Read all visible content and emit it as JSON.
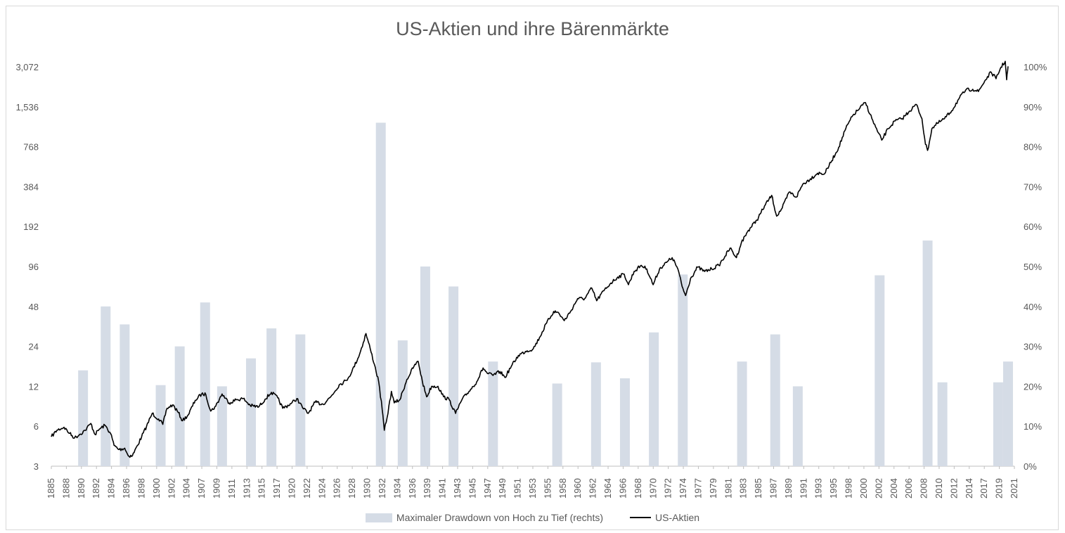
{
  "chart_data": {
    "type": "bar+line",
    "title": "US-Aktien und ihre Bärenmärkte",
    "y_left": {
      "scale": "log2",
      "ticks": [
        "3",
        "6",
        "12",
        "24",
        "48",
        "96",
        "192",
        "384",
        "768",
        "1,536",
        "3,072"
      ],
      "ylim": [
        3,
        3072
      ]
    },
    "y_right": {
      "ticks": [
        "0%",
        "10%",
        "20%",
        "30%",
        "40%",
        "50%",
        "60%",
        "70%",
        "80%",
        "90%",
        "100%"
      ],
      "ylim": [
        0,
        1
      ]
    },
    "x": {
      "xlim": [
        1885,
        2021.5
      ],
      "tick_labels": [
        "1885",
        "1888",
        "1890",
        "1892",
        "1894",
        "1896",
        "1898",
        "1900",
        "1902",
        "1904",
        "1907",
        "1909",
        "1911",
        "1913",
        "1915",
        "1917",
        "1920",
        "1922",
        "1924",
        "1926",
        "1928",
        "1930",
        "1932",
        "1934",
        "1936",
        "1939",
        "1941",
        "1943",
        "1945",
        "1947",
        "1949",
        "1951",
        "1953",
        "1955",
        "1958",
        "1960",
        "1962",
        "1964",
        "1966",
        "1968",
        "1970",
        "1972",
        "1974",
        "1977",
        "1979",
        "1981",
        "1983",
        "1985",
        "1987",
        "1989",
        "1991",
        "1993",
        "1995",
        "1998",
        "2000",
        "2002",
        "2004",
        "2006",
        "2008",
        "2010",
        "2012",
        "2014",
        "2017",
        "2019",
        "2021"
      ]
    },
    "series": [
      {
        "name": "Maximaler Drawdown von Hoch zu Tief (rechts)",
        "type": "bar",
        "color": "#d5dce6",
        "axis": "right",
        "points": [
          {
            "x": 1889.5,
            "y": 0.24
          },
          {
            "x": 1892.7,
            "y": 0.4
          },
          {
            "x": 1895.4,
            "y": 0.355
          },
          {
            "x": 1900.5,
            "y": 0.203
          },
          {
            "x": 1903.2,
            "y": 0.3
          },
          {
            "x": 1906.8,
            "y": 0.41
          },
          {
            "x": 1909.2,
            "y": 0.2
          },
          {
            "x": 1913.3,
            "y": 0.27
          },
          {
            "x": 1916.2,
            "y": 0.345
          },
          {
            "x": 1920.3,
            "y": 0.33
          },
          {
            "x": 1931.7,
            "y": 0.86
          },
          {
            "x": 1934.8,
            "y": 0.315
          },
          {
            "x": 1938.0,
            "y": 0.5
          },
          {
            "x": 1942.0,
            "y": 0.45
          },
          {
            "x": 1947.6,
            "y": 0.262
          },
          {
            "x": 1956.7,
            "y": 0.207
          },
          {
            "x": 1962.2,
            "y": 0.26
          },
          {
            "x": 1966.3,
            "y": 0.22
          },
          {
            "x": 1970.4,
            "y": 0.335
          },
          {
            "x": 1974.5,
            "y": 0.48
          },
          {
            "x": 1982.9,
            "y": 0.262
          },
          {
            "x": 1987.6,
            "y": 0.33
          },
          {
            "x": 1990.8,
            "y": 0.2
          },
          {
            "x": 2002.4,
            "y": 0.478
          },
          {
            "x": 2009.2,
            "y": 0.565
          },
          {
            "x": 2011.3,
            "y": 0.21
          },
          {
            "x": 2019.2,
            "y": 0.21
          },
          {
            "x": 2020.6,
            "y": 0.262
          }
        ]
      },
      {
        "name": "US-Aktien",
        "type": "line",
        "color": "#000000",
        "axis": "left",
        "points": [
          [
            1885.0,
            5.0
          ],
          [
            1885.8,
            5.6
          ],
          [
            1886.8,
            5.9
          ],
          [
            1887.6,
            5.3
          ],
          [
            1888.3,
            4.9
          ],
          [
            1889.0,
            5.2
          ],
          [
            1889.8,
            5.6
          ],
          [
            1890.6,
            6.3
          ],
          [
            1891.2,
            5.2
          ],
          [
            1891.8,
            5.7
          ],
          [
            1892.6,
            6.1
          ],
          [
            1893.4,
            5.3
          ],
          [
            1893.9,
            4.3
          ],
          [
            1894.6,
            4.0
          ],
          [
            1895.4,
            4.1
          ],
          [
            1895.9,
            3.6
          ],
          [
            1896.5,
            3.6
          ],
          [
            1897.2,
            4.3
          ],
          [
            1897.8,
            5.0
          ],
          [
            1898.5,
            6.0
          ],
          [
            1899.3,
            7.5
          ],
          [
            1900.2,
            6.8
          ],
          [
            1900.8,
            6.2
          ],
          [
            1901.4,
            8.2
          ],
          [
            1902.2,
            8.7
          ],
          [
            1903.0,
            7.6
          ],
          [
            1903.6,
            6.6
          ],
          [
            1904.4,
            7.3
          ],
          [
            1905.4,
            9.4
          ],
          [
            1906.3,
            10.5
          ],
          [
            1906.9,
            10.4
          ],
          [
            1907.6,
            7.8
          ],
          [
            1908.3,
            8.5
          ],
          [
            1909.2,
            10.5
          ],
          [
            1910.2,
            9.0
          ],
          [
            1911.2,
            9.5
          ],
          [
            1912.2,
            9.7
          ],
          [
            1913.2,
            8.6
          ],
          [
            1914.4,
            8.4
          ],
          [
            1915.3,
            9.6
          ],
          [
            1916.2,
            10.8
          ],
          [
            1917.1,
            9.8
          ],
          [
            1917.8,
            8.2
          ],
          [
            1919.0,
            8.9
          ],
          [
            1919.8,
            9.7
          ],
          [
            1920.6,
            8.3
          ],
          [
            1921.4,
            7.5
          ],
          [
            1922.4,
            9.1
          ],
          [
            1923.5,
            8.8
          ],
          [
            1924.6,
            10.0
          ],
          [
            1925.8,
            12.3
          ],
          [
            1926.8,
            13.3
          ],
          [
            1927.6,
            15.5
          ],
          [
            1928.7,
            21.0
          ],
          [
            1929.6,
            30.0
          ],
          [
            1930.2,
            23.0
          ],
          [
            1930.8,
            17.5
          ],
          [
            1931.4,
            13.0
          ],
          [
            1931.9,
            8.0
          ],
          [
            1932.2,
            5.6
          ],
          [
            1932.6,
            7.0
          ],
          [
            1933.2,
            11.0
          ],
          [
            1933.6,
            9.0
          ],
          [
            1934.4,
            9.5
          ],
          [
            1935.4,
            13.5
          ],
          [
            1936.4,
            17.0
          ],
          [
            1937.0,
            18.5
          ],
          [
            1937.6,
            13.0
          ],
          [
            1938.2,
            10.0
          ],
          [
            1938.9,
            12.0
          ],
          [
            1939.8,
            12.0
          ],
          [
            1940.6,
            10.0
          ],
          [
            1941.4,
            9.5
          ],
          [
            1942.3,
            7.5
          ],
          [
            1943.2,
            9.5
          ],
          [
            1944.2,
            11.0
          ],
          [
            1945.3,
            13.0
          ],
          [
            1946.2,
            16.5
          ],
          [
            1946.8,
            15.0
          ],
          [
            1947.6,
            14.5
          ],
          [
            1948.6,
            15.5
          ],
          [
            1949.3,
            14.0
          ],
          [
            1950.2,
            17.0
          ],
          [
            1951.2,
            20.5
          ],
          [
            1952.2,
            22.0
          ],
          [
            1953.3,
            23.0
          ],
          [
            1954.2,
            28.0
          ],
          [
            1955.2,
            36.0
          ],
          [
            1956.2,
            44.0
          ],
          [
            1956.9,
            43.0
          ],
          [
            1957.7,
            37.5
          ],
          [
            1958.6,
            44.0
          ],
          [
            1959.6,
            55.0
          ],
          [
            1960.6,
            55.0
          ],
          [
            1961.6,
            66.0
          ],
          [
            1962.3,
            53.0
          ],
          [
            1963.3,
            63.0
          ],
          [
            1964.3,
            72.0
          ],
          [
            1965.3,
            80.0
          ],
          [
            1966.2,
            84.0
          ],
          [
            1966.8,
            70.0
          ],
          [
            1967.6,
            88.0
          ],
          [
            1968.6,
            98.0
          ],
          [
            1969.4,
            92.0
          ],
          [
            1970.3,
            70.0
          ],
          [
            1971.2,
            92.0
          ],
          [
            1972.2,
            103.0
          ],
          [
            1973.0,
            112.0
          ],
          [
            1973.8,
            92.0
          ],
          [
            1974.4,
            68.0
          ],
          [
            1974.9,
            58.0
          ],
          [
            1975.6,
            78.0
          ],
          [
            1976.6,
            95.0
          ],
          [
            1977.6,
            88.0
          ],
          [
            1978.6,
            92.0
          ],
          [
            1979.6,
            98.0
          ],
          [
            1980.5,
            115.0
          ],
          [
            1981.2,
            132.0
          ],
          [
            1982.1,
            112.0
          ],
          [
            1982.8,
            145.0
          ],
          [
            1983.8,
            180.0
          ],
          [
            1985.0,
            215.0
          ],
          [
            1986.2,
            280.0
          ],
          [
            1987.1,
            330.0
          ],
          [
            1987.8,
            230.0
          ],
          [
            1988.6,
            265.0
          ],
          [
            1989.6,
            350.0
          ],
          [
            1990.6,
            320.0
          ],
          [
            1991.5,
            400.0
          ],
          [
            1992.6,
            440.0
          ],
          [
            1993.6,
            485.0
          ],
          [
            1994.6,
            480.0
          ],
          [
            1995.6,
            600.0
          ],
          [
            1996.6,
            760.0
          ],
          [
            1997.6,
            1050.0
          ],
          [
            1998.6,
            1320.0
          ],
          [
            1999.6,
            1500.0
          ],
          [
            2000.4,
            1650.0
          ],
          [
            2001.3,
            1250.0
          ],
          [
            2002.1,
            1000.0
          ],
          [
            2002.7,
            860.0
          ],
          [
            2003.6,
            1050.0
          ],
          [
            2004.6,
            1200.0
          ],
          [
            2005.6,
            1250.0
          ],
          [
            2006.6,
            1420.0
          ],
          [
            2007.6,
            1600.0
          ],
          [
            2008.4,
            1250.0
          ],
          [
            2008.9,
            800.0
          ],
          [
            2009.2,
            720.0
          ],
          [
            2009.8,
            1050.0
          ],
          [
            2010.6,
            1150.0
          ],
          [
            2011.6,
            1250.0
          ],
          [
            2012.6,
            1430.0
          ],
          [
            2013.6,
            1750.0
          ],
          [
            2014.6,
            2050.0
          ],
          [
            2015.6,
            2080.0
          ],
          [
            2016.4,
            2000.0
          ],
          [
            2017.3,
            2400.0
          ],
          [
            2018.2,
            2800.0
          ],
          [
            2018.9,
            2500.0
          ],
          [
            2019.6,
            3050.0
          ],
          [
            2020.2,
            3380.0
          ],
          [
            2020.4,
            2450.0
          ],
          [
            2020.6,
            3100.0
          ]
        ]
      }
    ],
    "legend": {
      "placement": "bottom-center",
      "bar_label": "Maximaler Drawdown von Hoch zu Tief (rechts)",
      "line_label": "US-Aktien"
    }
  }
}
